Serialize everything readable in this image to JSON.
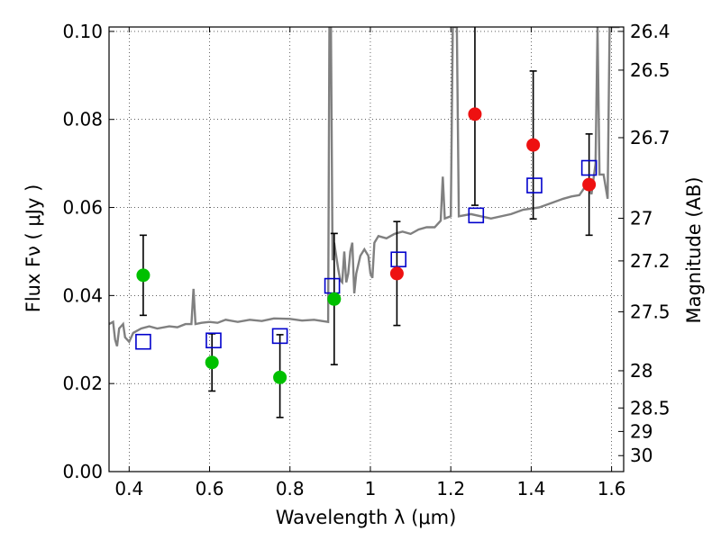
{
  "chart_data": {
    "type": "scatter",
    "xlabel": "Wavelength  λ (μm)",
    "ylabel": "Flux  Fν  ( μJy )",
    "y2label": "Magnitude (AB)",
    "xlim": [
      0.35,
      1.63
    ],
    "ylim": [
      0.0,
      0.101
    ],
    "x_ticks": [
      0.4,
      0.6,
      0.8,
      1.0,
      1.2,
      1.4,
      1.6
    ],
    "x_tick_labels": [
      "0.4",
      "0.6",
      "0.8",
      "1",
      "1.2",
      "1.4",
      "1.6"
    ],
    "y_ticks": [
      0.0,
      0.02,
      0.04,
      0.06,
      0.08,
      0.1
    ],
    "y_tick_labels": [
      "0.00",
      "0.02",
      "0.04",
      "0.06",
      "0.08",
      "0.10"
    ],
    "mag_ticks": [
      "26.4",
      "26.5",
      "26.7",
      "27",
      "27.2",
      "27.5",
      "28",
      "28.5",
      "29",
      "30"
    ],
    "grid": true,
    "spectrum": {
      "color": "#808080",
      "points": [
        [
          0.35,
          0.0335
        ],
        [
          0.36,
          0.034
        ],
        [
          0.365,
          0.03
        ],
        [
          0.37,
          0.0285
        ],
        [
          0.375,
          0.0325
        ],
        [
          0.385,
          0.0335
        ],
        [
          0.39,
          0.0305
        ],
        [
          0.4,
          0.0295
        ],
        [
          0.41,
          0.0315
        ],
        [
          0.43,
          0.0325
        ],
        [
          0.45,
          0.033
        ],
        [
          0.47,
          0.0325
        ],
        [
          0.5,
          0.033
        ],
        [
          0.52,
          0.0328
        ],
        [
          0.54,
          0.0335
        ],
        [
          0.555,
          0.0335
        ],
        [
          0.56,
          0.0415
        ],
        [
          0.565,
          0.0335
        ],
        [
          0.58,
          0.0338
        ],
        [
          0.6,
          0.034
        ],
        [
          0.62,
          0.0338
        ],
        [
          0.64,
          0.0345
        ],
        [
          0.67,
          0.034
        ],
        [
          0.7,
          0.0345
        ],
        [
          0.73,
          0.0342
        ],
        [
          0.76,
          0.0348
        ],
        [
          0.8,
          0.0347
        ],
        [
          0.83,
          0.0343
        ],
        [
          0.86,
          0.0345
        ],
        [
          0.88,
          0.0342
        ],
        [
          0.895,
          0.034
        ],
        [
          0.898,
          0.101
        ],
        [
          0.902,
          0.101
        ],
        [
          0.906,
          0.048
        ],
        [
          0.91,
          0.052
        ],
        [
          0.92,
          0.046
        ],
        [
          0.925,
          0.0435
        ],
        [
          0.93,
          0.043
        ],
        [
          0.935,
          0.05
        ],
        [
          0.94,
          0.043
        ],
        [
          0.945,
          0.045
        ],
        [
          0.95,
          0.05
        ],
        [
          0.955,
          0.052
        ],
        [
          0.96,
          0.0405
        ],
        [
          0.965,
          0.045
        ],
        [
          0.975,
          0.049
        ],
        [
          0.985,
          0.0505
        ],
        [
          0.995,
          0.049
        ],
        [
          1.0,
          0.045
        ],
        [
          1.005,
          0.044
        ],
        [
          1.01,
          0.052
        ],
        [
          1.02,
          0.0535
        ],
        [
          1.04,
          0.053
        ],
        [
          1.06,
          0.054
        ],
        [
          1.08,
          0.0545
        ],
        [
          1.1,
          0.054
        ],
        [
          1.12,
          0.055
        ],
        [
          1.14,
          0.0555
        ],
        [
          1.16,
          0.0555
        ],
        [
          1.175,
          0.057
        ],
        [
          1.18,
          0.067
        ],
        [
          1.185,
          0.0575
        ],
        [
          1.2,
          0.058
        ],
        [
          1.205,
          0.101
        ],
        [
          1.215,
          0.101
        ],
        [
          1.22,
          0.058
        ],
        [
          1.25,
          0.0585
        ],
        [
          1.3,
          0.0575
        ],
        [
          1.35,
          0.0585
        ],
        [
          1.38,
          0.0595
        ],
        [
          1.42,
          0.06
        ],
        [
          1.45,
          0.061
        ],
        [
          1.48,
          0.062
        ],
        [
          1.5,
          0.0625
        ],
        [
          1.52,
          0.0628
        ],
        [
          1.54,
          0.0655
        ],
        [
          1.55,
          0.063
        ],
        [
          1.56,
          0.07
        ],
        [
          1.565,
          0.101
        ],
        [
          1.57,
          0.0675
        ],
        [
          1.58,
          0.0675
        ],
        [
          1.59,
          0.062
        ],
        [
          1.595,
          0.101
        ],
        [
          1.6,
          0.101
        ],
        [
          1.605,
          0.101
        ],
        [
          1.61,
          0.101
        ],
        [
          1.615,
          0.101
        ],
        [
          1.62,
          0.101
        ]
      ]
    },
    "green_points": {
      "color": "#00c000",
      "points": [
        {
          "x": 0.435,
          "y": 0.0446,
          "err_lo": 0.0355,
          "err_hi": 0.0537
        },
        {
          "x": 0.606,
          "y": 0.0248,
          "err_lo": 0.0183,
          "err_hi": 0.0313
        },
        {
          "x": 0.775,
          "y": 0.0214,
          "err_lo": 0.0123,
          "err_hi": 0.0311
        },
        {
          "x": 0.91,
          "y": 0.0392,
          "err_lo": 0.0243,
          "err_hi": 0.0541
        }
      ]
    },
    "red_points": {
      "color": "#ee1111",
      "points": [
        {
          "x": 1.066,
          "y": 0.045,
          "err_lo": 0.0332,
          "err_hi": 0.0568
        },
        {
          "x": 1.26,
          "y": 0.0812,
          "err_lo": 0.0605,
          "err_hi": 0.101
        },
        {
          "x": 1.405,
          "y": 0.0742,
          "err_lo": 0.0574,
          "err_hi": 0.091
        },
        {
          "x": 1.544,
          "y": 0.0652,
          "err_lo": 0.0537,
          "err_hi": 0.0767
        }
      ]
    },
    "model_points": {
      "color": "#0000cc",
      "points": [
        {
          "x": 0.435,
          "y": 0.0295
        },
        {
          "x": 0.61,
          "y": 0.0298
        },
        {
          "x": 0.775,
          "y": 0.0308
        },
        {
          "x": 0.905,
          "y": 0.0422
        },
        {
          "x": 1.07,
          "y": 0.0482
        },
        {
          "x": 1.263,
          "y": 0.0582
        },
        {
          "x": 1.408,
          "y": 0.065
        },
        {
          "x": 1.544,
          "y": 0.069
        }
      ]
    }
  }
}
